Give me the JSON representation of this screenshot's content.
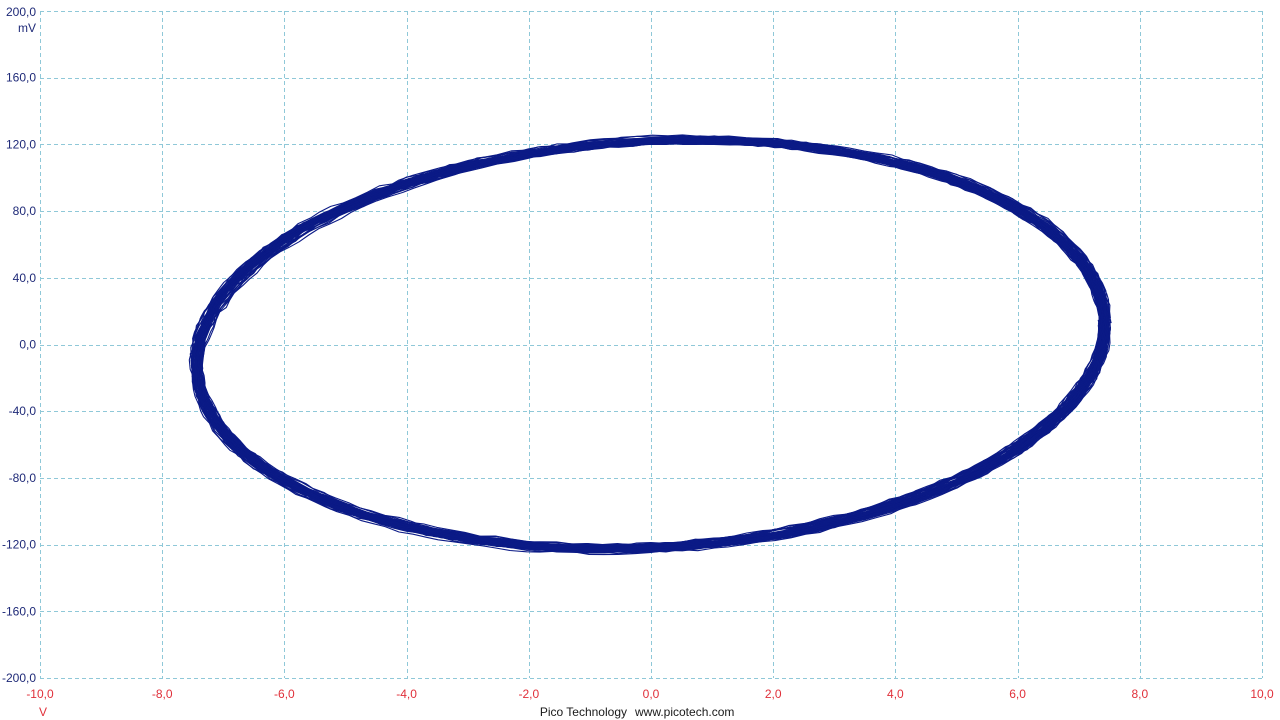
{
  "chart_data": {
    "type": "line",
    "mode": "xy",
    "x_axis": {
      "unit": "V",
      "range": [
        -10,
        10
      ],
      "ticks": [
        "-10,0",
        "-8,0",
        "-6,0",
        "-4,0",
        "-2,0",
        "0,0",
        "2,0",
        "4,0",
        "6,0",
        "8,0",
        "10,0"
      ],
      "tick_values": [
        -10,
        -8,
        -6,
        -4,
        -2,
        0,
        2,
        4,
        6,
        8,
        10
      ],
      "color": "#e0303a"
    },
    "y_axis": {
      "unit": "mV",
      "range": [
        -200,
        200
      ],
      "ticks": [
        "200,0",
        "160,0",
        "120,0",
        "80,0",
        "40,0",
        "0,0",
        "-40,0",
        "-80,0",
        "-120,0",
        "-160,0",
        "-200,0"
      ],
      "tick_values": [
        200,
        160,
        120,
        80,
        40,
        0,
        -40,
        -80,
        -120,
        -160,
        -200
      ],
      "color": "#1f2a78"
    },
    "grid": true,
    "series": [
      {
        "trace_color": "#0b1a86",
        "shape": "ellipse",
        "x": [
          7.45,
          6.9,
          5.5,
          3.6,
          1.3,
          -1.0,
          -3.2,
          -5.2,
          -6.7,
          -7.4,
          -7.45,
          -6.9,
          -5.5,
          -3.6,
          -1.3,
          1.0,
          3.2,
          5.2,
          6.7,
          7.4,
          7.45
        ],
        "y": [
          10,
          65,
          100,
          118,
          124,
          122,
          110,
          85,
          50,
          10,
          -10,
          -65,
          -100,
          -118,
          -124,
          -122,
          -110,
          -85,
          -50,
          -10,
          10
        ]
      }
    ]
  },
  "footer": {
    "brand": "Pico Technology",
    "website": "www.picotech.com"
  }
}
